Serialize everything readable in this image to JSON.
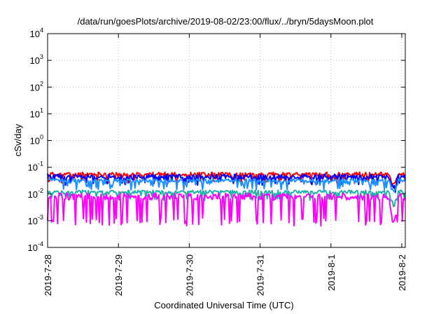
{
  "chart_data": {
    "type": "line",
    "title": "/data/run/goesPlots/archive/2019-08-02/23:00/flux/../bryn/5daysMoon.plot",
    "xlabel": "Coordinated Universal Time (UTC)",
    "ylabel": "cSv/day",
    "y_scale": "log",
    "ylim": [
      0.0001,
      10000
    ],
    "xlim": [
      0,
      5.05
    ],
    "grid": true,
    "legend": "none",
    "y_ticks": [
      {
        "value": 0.0001,
        "base": "10",
        "exp": "-4"
      },
      {
        "value": 0.001,
        "base": "10",
        "exp": "-3"
      },
      {
        "value": 0.01,
        "base": "10",
        "exp": "-2"
      },
      {
        "value": 0.1,
        "base": "10",
        "exp": "-1"
      },
      {
        "value": 1,
        "base": "10",
        "exp": "0"
      },
      {
        "value": 10,
        "base": "10",
        "exp": "1"
      },
      {
        "value": 100,
        "base": "10",
        "exp": "2"
      },
      {
        "value": 1000,
        "base": "10",
        "exp": "3"
      },
      {
        "value": 10000,
        "base": "10",
        "exp": "4"
      }
    ],
    "x_ticks": [
      {
        "value": 0,
        "label": "2019-7-28"
      },
      {
        "value": 1,
        "label": "2019-7-29"
      },
      {
        "value": 2,
        "label": "2019-7-30"
      },
      {
        "value": 3,
        "label": "2019-7-31"
      },
      {
        "value": 4,
        "label": "2019-8-1"
      },
      {
        "value": 5,
        "label": "2019-8-2"
      }
    ],
    "series": [
      {
        "color": "#ff0000",
        "base": 0.055,
        "dip": 0.035,
        "noise": 0.6,
        "seed": 11
      },
      {
        "color": "#0000ff",
        "base": 0.045,
        "dip": 0.03,
        "noise": 0.7,
        "seed": 23
      },
      {
        "color": "#1e90ff",
        "base": 0.032,
        "dip": 0.02,
        "noise": 0.5,
        "seed": 37
      },
      {
        "color": "#20b2aa",
        "base": 0.012,
        "dip": 0.008,
        "noise": 0.5,
        "seed": 41
      },
      {
        "color": "#ff00ff",
        "base": 0.008,
        "dip": 0.0009,
        "noise": 1.0,
        "seed": 53
      }
    ],
    "anomaly": {
      "x_start": 4.82,
      "x_end": 4.95,
      "min": 0.0009
    }
  }
}
